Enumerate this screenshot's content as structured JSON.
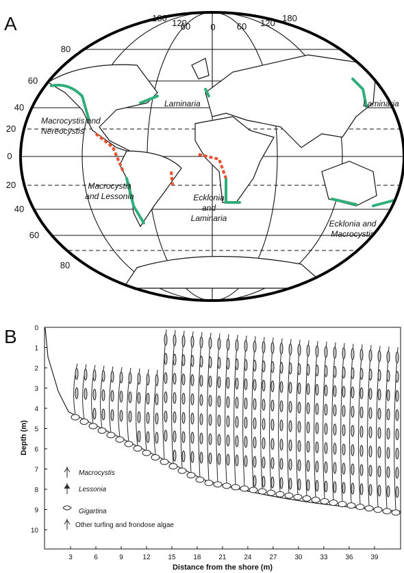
{
  "panel_a": {
    "label": "A",
    "longitude_labels": [
      "180",
      "120",
      "60",
      "0",
      "60",
      "120",
      "180"
    ],
    "latitude_labels": [
      "80",
      "60",
      "40",
      "20",
      "0",
      "20",
      "40",
      "60",
      "80"
    ],
    "regions": [
      [
        "Macrocystis and",
        "Nereocystis"
      ],
      [
        "Laminaria"
      ],
      [
        "Laminaria"
      ],
      [
        "Macrocystis",
        "and Lessonia"
      ],
      [
        "Ecklonia",
        "and",
        "Laminaria"
      ],
      [
        "Ecklonia and",
        "Macrocystis"
      ]
    ]
  },
  "panel_b": {
    "label": "B",
    "y_axis_title": "Depth (m)",
    "x_axis_title": "Distance from the shore (m)",
    "y_ticks": [
      0,
      1,
      2,
      3,
      4,
      5,
      6,
      7,
      8,
      9,
      10
    ],
    "x_ticks": [
      3,
      6,
      9,
      12,
      15,
      18,
      21,
      24,
      27,
      30,
      33,
      36,
      39
    ],
    "legend": [
      "Macrocystis",
      "Lessonia",
      "Gigartina",
      "Other turfing and frondose algae"
    ]
  }
}
